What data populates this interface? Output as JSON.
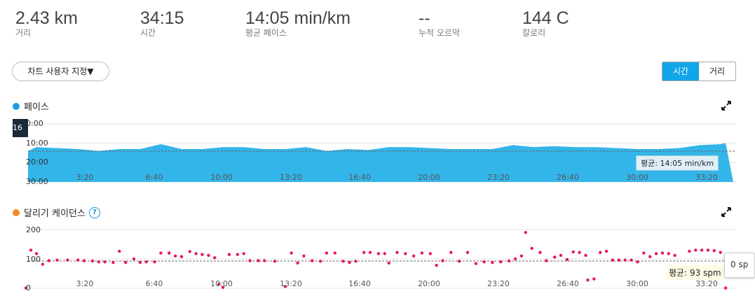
{
  "stats": [
    {
      "value": "2.43 km",
      "label": "거리"
    },
    {
      "value": "34:15",
      "label": "시간"
    },
    {
      "value": "14:05 min/km",
      "label": "평균 페이스"
    },
    {
      "value": "--",
      "label": "누적 오르막"
    },
    {
      "value": "144 C",
      "label": "칼로리"
    }
  ],
  "toolbar": {
    "chart_custom_label": "차트 사용자 지정▼",
    "toggle_time": "시간",
    "toggle_distance": "거리"
  },
  "pace_chart": {
    "title": "페이스",
    "color": "#33b5ea",
    "y_ticks": [
      "0:00",
      "10:00",
      "20:00",
      "30:00"
    ],
    "x_ticks": [
      "3:20",
      "6:40",
      "10:00",
      "13:20",
      "16:40",
      "20:00",
      "23:20",
      "26:40",
      "30:00",
      "33:20"
    ],
    "avg_label": "평균: 14:05 min/km",
    "hover_label": "16",
    "icon": "expand-icon"
  },
  "cadence_chart": {
    "title": "달리기 케이던스",
    "color": "#e8175d",
    "title_dot_color": "#f28c1e",
    "y_ticks": [
      "200",
      "100",
      "0"
    ],
    "x_ticks": [
      "3:20",
      "6:40",
      "10:00",
      "13:20",
      "16:40",
      "20:00",
      "23:20",
      "26:40",
      "30:00",
      "33:20"
    ],
    "avg_label": "평균: 93 spm",
    "hover_label": "0 sp",
    "icons": [
      "help-icon",
      "expand-icon"
    ]
  },
  "chart_data": [
    {
      "type": "area",
      "title": "페이스",
      "x_unit": "min",
      "ylabel": "",
      "ylim": [
        30,
        0
      ],
      "average": 14.08,
      "x": [
        0,
        0.5,
        1,
        2,
        3,
        4,
        5,
        6,
        7,
        8,
        9,
        10,
        11,
        12,
        13,
        14,
        15,
        16,
        17,
        18,
        19,
        20,
        21,
        22,
        23,
        24,
        25,
        26,
        27,
        28,
        29,
        30,
        31,
        32,
        33,
        34,
        34.25
      ],
      "values": [
        20,
        14,
        12,
        12.5,
        13,
        14,
        13,
        13,
        10.5,
        13,
        13,
        12,
        12,
        13,
        13,
        12,
        14,
        13,
        13.5,
        12,
        12,
        12.5,
        13,
        13,
        13,
        11,
        12,
        11.5,
        12,
        12,
        12.5,
        13,
        13,
        12.5,
        11,
        10.5,
        10
      ]
    },
    {
      "type": "scatter",
      "title": "달리기 케이던스",
      "x_unit": "min",
      "ylabel": "",
      "ylim": [
        0,
        200
      ],
      "average": 93,
      "points": [
        [
          0,
          1
        ],
        [
          0.3,
          130
        ],
        [
          1,
          118
        ],
        [
          1.3,
          82
        ],
        [
          1.6,
          94
        ],
        [
          2,
          96
        ],
        [
          2.5,
          96
        ],
        [
          3,
          96
        ],
        [
          3.3,
          94
        ],
        [
          3.7,
          93
        ],
        [
          4,
          90
        ],
        [
          4.3,
          90
        ],
        [
          4.7,
          88
        ],
        [
          5,
          126
        ],
        [
          5.3,
          88
        ],
        [
          5.7,
          100
        ],
        [
          6,
          88
        ],
        [
          6.3,
          90
        ],
        [
          6.7,
          90
        ],
        [
          7,
          120
        ],
        [
          7.4,
          120
        ],
        [
          7.7,
          110
        ],
        [
          8,
          108
        ],
        [
          8.4,
          125
        ],
        [
          8.7,
          118
        ],
        [
          9,
          115
        ],
        [
          9.3,
          112
        ],
        [
          9.6,
          104
        ],
        [
          9.8,
          14
        ],
        [
          10,
          3
        ],
        [
          10.3,
          115
        ],
        [
          10.7,
          115
        ],
        [
          11,
          118
        ],
        [
          11.3,
          94
        ],
        [
          11.7,
          94
        ],
        [
          12,
          94
        ],
        [
          12.5,
          92
        ],
        [
          13,
          6
        ],
        [
          13.3,
          120
        ],
        [
          13.6,
          86
        ],
        [
          13.9,
          110
        ],
        [
          14.3,
          94
        ],
        [
          14.7,
          92
        ],
        [
          15,
          120
        ],
        [
          15.4,
          120
        ],
        [
          15.8,
          92
        ],
        [
          16.1,
          88
        ],
        [
          16.4,
          92
        ],
        [
          16.8,
          122
        ],
        [
          17.1,
          122
        ],
        [
          17.5,
          118
        ],
        [
          17.8,
          118
        ],
        [
          18,
          86
        ],
        [
          18.4,
          122
        ],
        [
          18.8,
          118
        ],
        [
          19.2,
          110
        ],
        [
          19.6,
          120
        ],
        [
          20,
          118
        ],
        [
          20.3,
          78
        ],
        [
          20.6,
          94
        ],
        [
          21,
          122
        ],
        [
          21.4,
          92
        ],
        [
          21.8,
          122
        ],
        [
          22.2,
          84
        ],
        [
          22.6,
          90
        ],
        [
          23,
          88
        ],
        [
          23.4,
          90
        ],
        [
          23.8,
          93
        ],
        [
          24.1,
          100
        ],
        [
          24.4,
          110
        ],
        [
          24.6,
          190
        ],
        [
          24.9,
          136
        ],
        [
          25.3,
          122
        ],
        [
          25.6,
          94
        ],
        [
          26,
          106
        ],
        [
          26.3,
          112
        ],
        [
          26.6,
          98
        ],
        [
          26.9,
          124
        ],
        [
          27.2,
          122
        ],
        [
          27.5,
          112
        ],
        [
          27.6,
          28
        ],
        [
          27.9,
          32
        ],
        [
          28.2,
          122
        ],
        [
          28.5,
          126
        ],
        [
          28.8,
          96
        ],
        [
          29.1,
          96
        ],
        [
          29.4,
          96
        ],
        [
          29.7,
          96
        ],
        [
          30,
          90
        ],
        [
          30.3,
          120
        ],
        [
          30.6,
          108
        ],
        [
          30.9,
          118
        ],
        [
          31.2,
          120
        ],
        [
          31.5,
          118
        ],
        [
          31.8,
          112
        ],
        [
          32.1,
          70
        ],
        [
          32.5,
          126
        ],
        [
          32.8,
          130
        ],
        [
          33.1,
          130
        ],
        [
          33.4,
          130
        ],
        [
          33.7,
          128
        ],
        [
          34,
          122
        ],
        [
          34.25,
          1
        ]
      ]
    }
  ]
}
